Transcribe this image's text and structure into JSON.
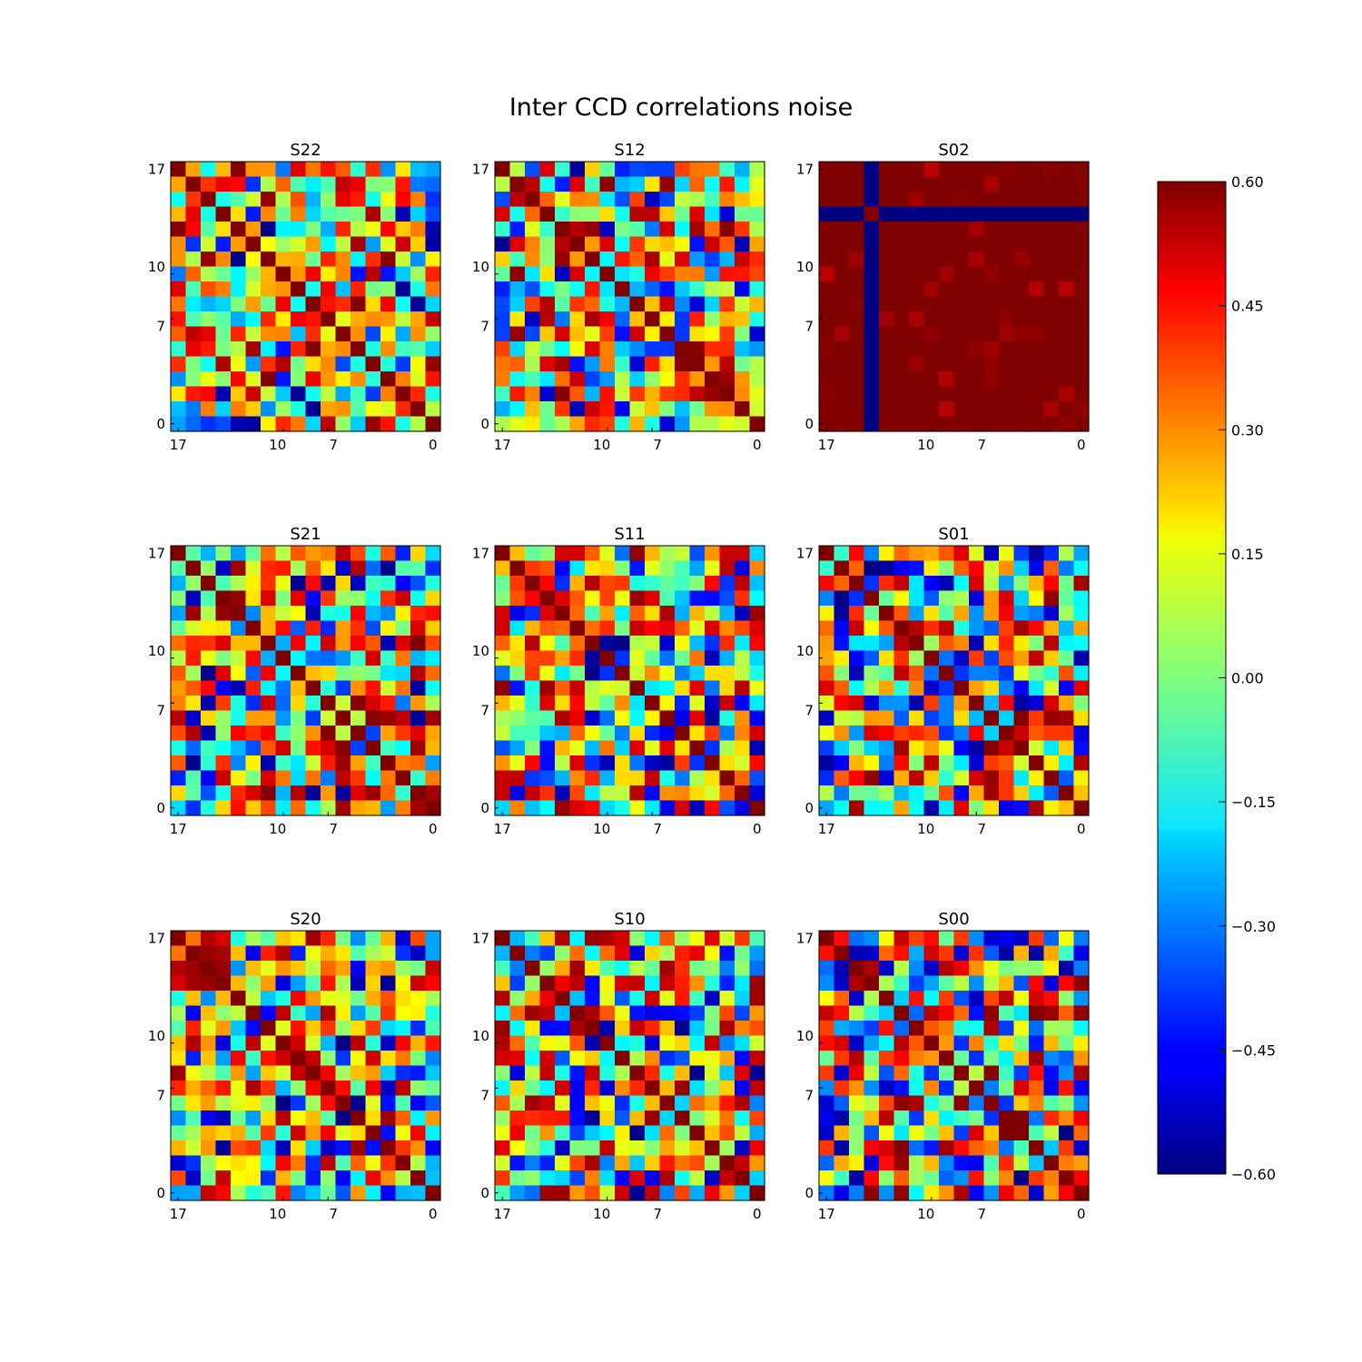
{
  "figure": {
    "title": "Inter CCD correlations noise",
    "colorbar": {
      "vmin": -0.6,
      "vmax": 0.6,
      "colormap": "jet",
      "ticks": [
        "0.60",
        "0.45",
        "0.30",
        "0.15",
        "0.00",
        "−0.15",
        "−0.30",
        "−0.45",
        "−0.60"
      ]
    }
  },
  "chart_data": [
    {
      "type": "heatmap",
      "title": "S22",
      "grid_size": 18,
      "xticks": [
        "17",
        "10",
        "7",
        "0"
      ],
      "yticks": [
        "17",
        "10",
        "7",
        "0"
      ],
      "value_range": [
        -0.6,
        0.6
      ]
    },
    {
      "type": "heatmap",
      "title": "S12",
      "grid_size": 18,
      "xticks": [
        "17",
        "10",
        "7",
        "0"
      ],
      "yticks": [
        "17",
        "10",
        "7",
        "0"
      ],
      "value_range": [
        -0.6,
        0.6
      ]
    },
    {
      "type": "heatmap",
      "title": "S02",
      "grid_size": 18,
      "xticks": [
        "17",
        "10",
        "7",
        "0"
      ],
      "yticks": [
        "17",
        "10",
        "7",
        "0"
      ],
      "value_range": [
        -0.6,
        0.6
      ]
    },
    {
      "type": "heatmap",
      "title": "S21",
      "grid_size": 18,
      "xticks": [
        "17",
        "10",
        "7",
        "0"
      ],
      "yticks": [
        "17",
        "10",
        "7",
        "0"
      ],
      "value_range": [
        -0.6,
        0.6
      ]
    },
    {
      "type": "heatmap",
      "title": "S11",
      "grid_size": 18,
      "xticks": [
        "17",
        "10",
        "7",
        "0"
      ],
      "yticks": [
        "17",
        "10",
        "7",
        "0"
      ],
      "value_range": [
        -0.6,
        0.6
      ]
    },
    {
      "type": "heatmap",
      "title": "S01",
      "grid_size": 18,
      "xticks": [
        "17",
        "10",
        "7",
        "0"
      ],
      "yticks": [
        "17",
        "10",
        "7",
        "0"
      ],
      "value_range": [
        -0.6,
        0.6
      ]
    },
    {
      "type": "heatmap",
      "title": "S20",
      "grid_size": 18,
      "xticks": [
        "17",
        "10",
        "7",
        "0"
      ],
      "yticks": [
        "17",
        "10",
        "7",
        "0"
      ],
      "value_range": [
        -0.6,
        0.6
      ]
    },
    {
      "type": "heatmap",
      "title": "S10",
      "grid_size": 18,
      "xticks": [
        "17",
        "10",
        "7",
        "0"
      ],
      "yticks": [
        "17",
        "10",
        "7",
        "0"
      ],
      "value_range": [
        -0.6,
        0.6
      ]
    },
    {
      "type": "heatmap",
      "title": "S00",
      "grid_size": 18,
      "xticks": [
        "17",
        "10",
        "7",
        "0"
      ],
      "yticks": [
        "17",
        "10",
        "7",
        "0"
      ],
      "value_range": [
        -0.6,
        0.6
      ]
    }
  ]
}
